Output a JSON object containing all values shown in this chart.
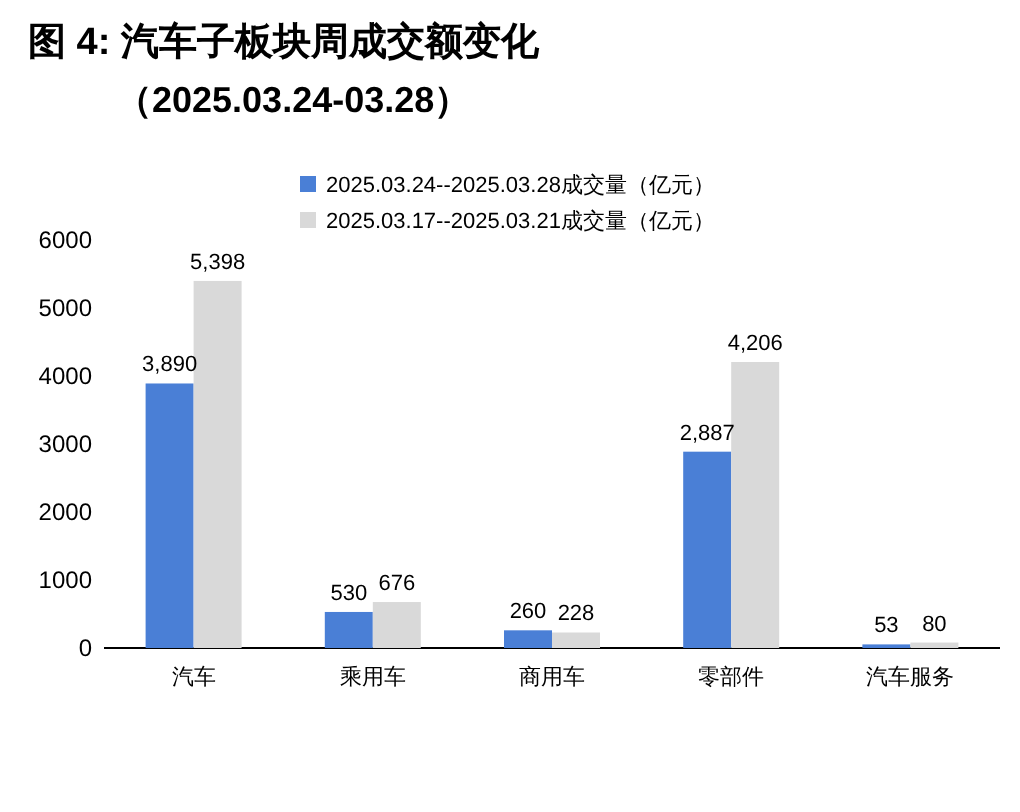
{
  "chart_data": {
    "type": "bar",
    "title": "图 4:  汽车子板块周成交额变化",
    "subtitle": "（2025.03.24-03.28）",
    "categories": [
      "汽车",
      "乘用车",
      "商用车",
      "零部件",
      "汽车服务"
    ],
    "series": [
      {
        "name": "2025.03.24--2025.03.28成交量（亿元）",
        "color": "#4a7fd6",
        "values": [
          3890,
          530,
          260,
          2887,
          53
        ],
        "value_labels": [
          "3,890",
          "530",
          "260",
          "2,887",
          "53"
        ]
      },
      {
        "name": "2025.03.17--2025.03.21成交量（亿元）",
        "color": "#d9d9d9",
        "values": [
          5398,
          676,
          228,
          4206,
          80
        ],
        "value_labels": [
          "5,398",
          "676",
          "228",
          "4,206",
          "80"
        ]
      }
    ],
    "ylim": [
      0,
      6000
    ],
    "yticks": [
      0,
      1000,
      2000,
      3000,
      4000,
      5000,
      6000
    ],
    "grid": false,
    "legend": "top"
  }
}
